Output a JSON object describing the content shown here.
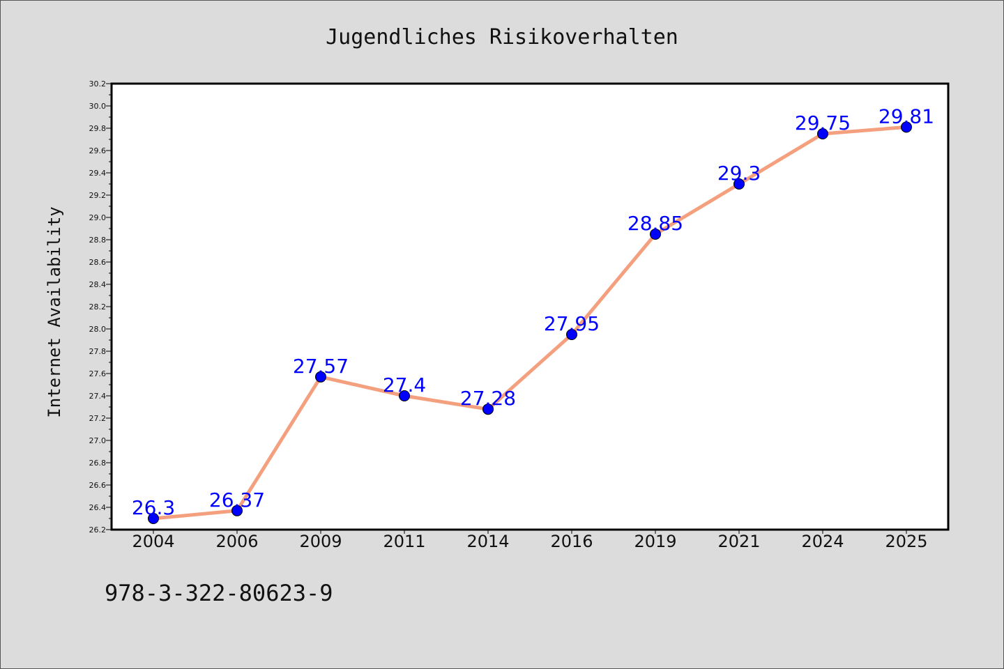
{
  "chart_data": {
    "type": "line",
    "title": "Jugendliches Risikoverhalten",
    "xlabel": "",
    "ylabel": "Internet Availability",
    "categories": [
      "2004",
      "2006",
      "2009",
      "2011",
      "2014",
      "2016",
      "2019",
      "2021",
      "2024",
      "2025"
    ],
    "series": [
      {
        "values": [
          26.3,
          26.37,
          27.57,
          27.4,
          27.28,
          27.95,
          28.85,
          29.3,
          29.75,
          29.81
        ],
        "data_labels": [
          "26.3",
          "26.37",
          "27.57",
          "27.4",
          "27.28",
          "27.95",
          "28.85",
          "29.3",
          "29.75",
          "29.81"
        ]
      }
    ],
    "ylim": [
      26.2,
      30.2
    ],
    "yticks": [
      "26.2",
      "26.4",
      "26.6",
      "26.8",
      "27.0",
      "27.2",
      "27.4",
      "27.6",
      "27.8",
      "28.0",
      "28.2",
      "28.4",
      "28.6",
      "28.8",
      "29.0",
      "29.2",
      "29.4",
      "29.6",
      "29.8",
      "30.0",
      "30.2"
    ],
    "grid": false,
    "legend": "none",
    "colors": {
      "line": "#f4a07e",
      "marker": "#0000ff",
      "data_label": "#0000ff",
      "plot_background": "#ffffff",
      "figure_background": "#dcdcdc"
    }
  },
  "footer": {
    "id_text": "978-3-322-80623-9"
  }
}
